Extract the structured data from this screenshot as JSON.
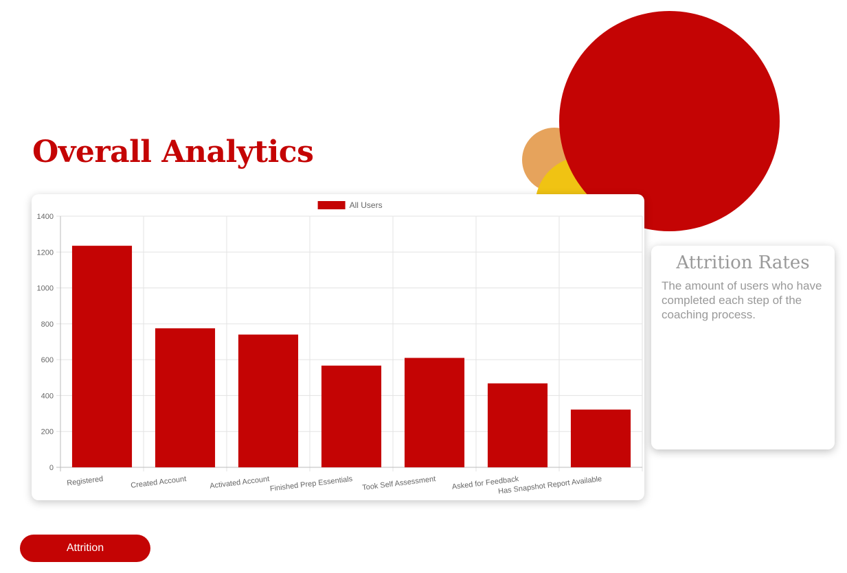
{
  "page": {
    "title": "Overall Analytics"
  },
  "info_card": {
    "title": "Attrition Rates",
    "description": "The amount of users who have completed each step of the coaching process."
  },
  "buttons": {
    "attrition_label": "Attrition"
  },
  "colors": {
    "brand_red": "#c40404",
    "accent_orange": "#e6a35c",
    "accent_yellow": "#f0c313",
    "muted_text": "#999999"
  },
  "chart_data": {
    "type": "bar",
    "categories": [
      "Registered",
      "Created Account",
      "Activated Account",
      "Finished Prep Essentials",
      "Took Self Assessment",
      "Asked for Feedback",
      "Has Snapshot Report Available"
    ],
    "series": [
      {
        "name": "All Users",
        "values": [
          1235,
          775,
          740,
          567,
          610,
          468,
          322
        ],
        "color": "#c40404"
      }
    ],
    "ylim": [
      0,
      1400
    ],
    "yticks": [
      0,
      200,
      400,
      600,
      800,
      1000,
      1200,
      1400
    ],
    "grid": true,
    "legend_position": "top"
  }
}
